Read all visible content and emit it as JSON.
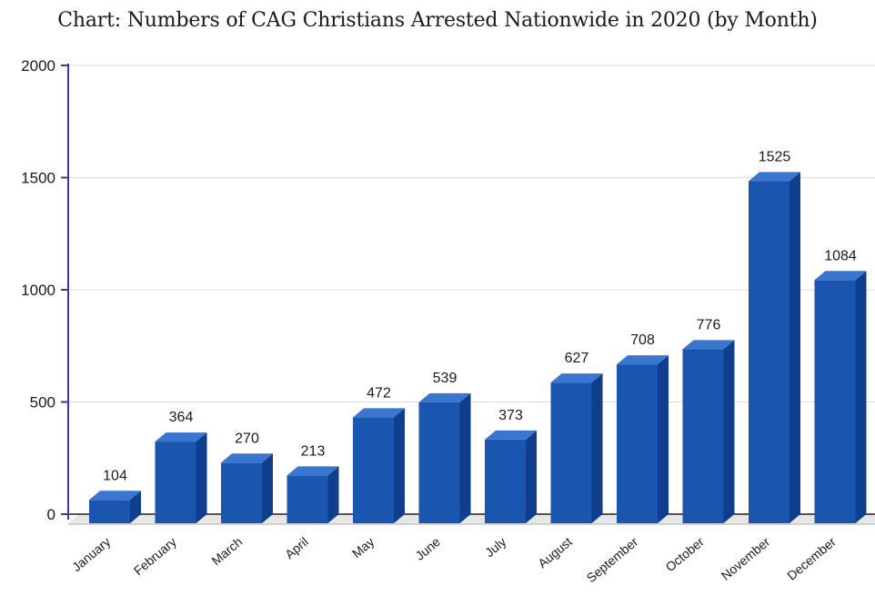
{
  "chart_data": {
    "type": "bar",
    "title": "Chart: Numbers of CAG Christians Arrested Nationwide in 2020 (by Month)",
    "xlabel": "",
    "ylabel": "",
    "categories": [
      "January",
      "February",
      "March",
      "April",
      "May",
      "June",
      "July",
      "August",
      "September",
      "October",
      "November",
      "December"
    ],
    "values": [
      104,
      364,
      270,
      213,
      472,
      539,
      373,
      627,
      708,
      776,
      1525,
      1084
    ],
    "ylim": [
      0,
      2000
    ],
    "yticks": [
      0,
      500,
      1000,
      1500,
      2000
    ],
    "grid": true,
    "legend": "none",
    "style": "3d-bar",
    "colors": {
      "bar_front": "#1a56b0",
      "bar_side": "#0f3f8c",
      "bar_top": "#3a76cf",
      "floor": "#e6e6e6",
      "grid": "#dcdcdc",
      "axis": "#3a3aa0"
    }
  }
}
